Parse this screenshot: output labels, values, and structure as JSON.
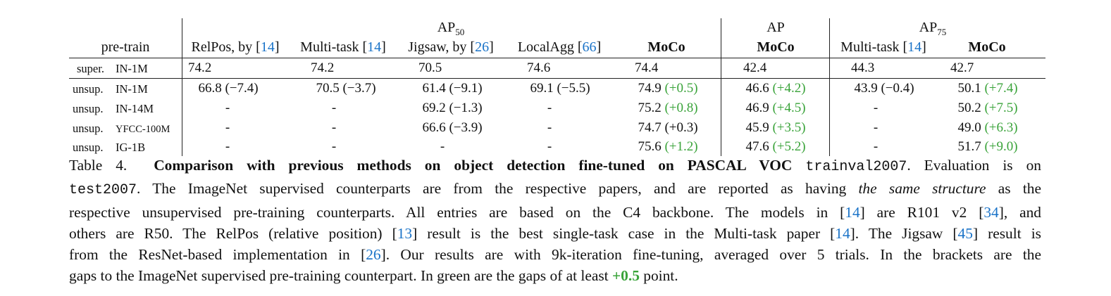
{
  "table": {
    "header": {
      "pretrain": "pre-train",
      "ap50": "AP",
      "ap50_sub": "50",
      "ap": "AP",
      "ap75": "AP",
      "ap75_sub": "75",
      "relpos_text": "RelPos, by [",
      "relpos_ref": "14",
      "relpos_close": "]",
      "multitask_text": "Multi-task [",
      "multitask_ref": "14",
      "multitask_close": "]",
      "jigsaw_text": "Jigsaw, by [",
      "jigsaw_ref": "26",
      "jigsaw_close": "]",
      "localagg_text": "LocalAgg [",
      "localagg_ref": "66",
      "localagg_close": "]",
      "moco": "MoCo",
      "ap_moco": "MoCo",
      "ap75_multitask_text": "Multi-task [",
      "ap75_multitask_ref": "14",
      "ap75_multitask_close": "]",
      "ap75_moco": "MoCo"
    },
    "rows": [
      {
        "type": "super.",
        "data": "IN-1M",
        "relpos": "74.2",
        "multitask": "74.2",
        "jigsaw": "70.5",
        "localagg": "74.6",
        "moco": "74.4",
        "moco_gap": "",
        "ap_moco": "42.4",
        "ap_moco_gap": "",
        "ap75_multitask": "44.3",
        "ap75_moco": "42.7",
        "ap75_moco_gap": ""
      },
      {
        "type": "unsup.",
        "data": "IN-1M",
        "relpos": "66.8 (−7.4)",
        "multitask": "70.5 (−3.7)",
        "jigsaw": "61.4 (−9.1)",
        "localagg": "69.1 (−5.5)",
        "moco": "74.9",
        "moco_gap": "(+0.5)",
        "ap_moco": "46.6",
        "ap_moco_gap": "(+4.2)",
        "ap75_multitask": "43.9 (−0.4)",
        "ap75_moco": "50.1",
        "ap75_moco_gap": "(+7.4)"
      },
      {
        "type": "unsup.",
        "data": "IN-14M",
        "relpos": "-",
        "multitask": "-",
        "jigsaw": "69.2 (−1.3)",
        "localagg": "-",
        "moco": "75.2",
        "moco_gap": "(+0.8)",
        "ap_moco": "46.9",
        "ap_moco_gap": "(+4.5)",
        "ap75_multitask": "-",
        "ap75_moco": "50.2",
        "ap75_moco_gap": "(+7.5)"
      },
      {
        "type": "unsup.",
        "data": "YFCC-100M",
        "relpos": "-",
        "multitask": "-",
        "jigsaw": "66.6 (−3.9)",
        "localagg": "-",
        "moco": "74.7 (+0.3)",
        "moco_gap": "",
        "ap_moco": "45.9",
        "ap_moco_gap": "(+3.5)",
        "ap75_multitask": "-",
        "ap75_moco": "49.0",
        "ap75_moco_gap": "(+6.3)"
      },
      {
        "type": "unsup.",
        "data": "IG-1B",
        "relpos": "-",
        "multitask": "-",
        "jigsaw": "-",
        "localagg": "-",
        "moco": "75.6",
        "moco_gap": "(+1.2)",
        "ap_moco": "47.6",
        "ap_moco_gap": "(+5.2)",
        "ap75_multitask": "-",
        "ap75_moco": "51.7",
        "ap75_moco_gap": "(+9.0)"
      }
    ]
  },
  "caption": {
    "label": "Table 4.",
    "bold_title": "Comparison with previous methods on object detection fine-tuned on PASCAL VOC",
    "trainval": "trainval2007",
    "t1": ". Evaluation is on",
    "test": "test2007",
    "t2": ". The ImageNet supervised counterparts are from the respective papers, and are reported as having",
    "italic": "the same structure",
    "t3": "as the",
    "t4": "respective unsupervised pre-training counterparts. All entries are based on the C4 backbone. The models in [",
    "r14a": "14",
    "t5": "] are R101 v2 [",
    "r34": "34",
    "t6": "], and",
    "t7": "others are R50. The RelPos (relative position) [",
    "r13": "13",
    "t8": "] result is the best single-task case in the Multi-task paper [",
    "r14b": "14",
    "t9": "]. The Jigsaw [",
    "r45": "45",
    "t10": "] result is",
    "t11": "from the ResNet-based implementation in [",
    "r26": "26",
    "t12": "]. Our results are with 9k-iteration fine-tuning, averaged over 5 trials. In the brackets are the",
    "t13": "gaps to the ImageNet supervised pre-training counterpart. In green are the gaps of at least",
    "green": "+0.5",
    "t14": "point."
  },
  "colors": {
    "green": "#3aa33a",
    "link_blue": "#1a73c8"
  }
}
